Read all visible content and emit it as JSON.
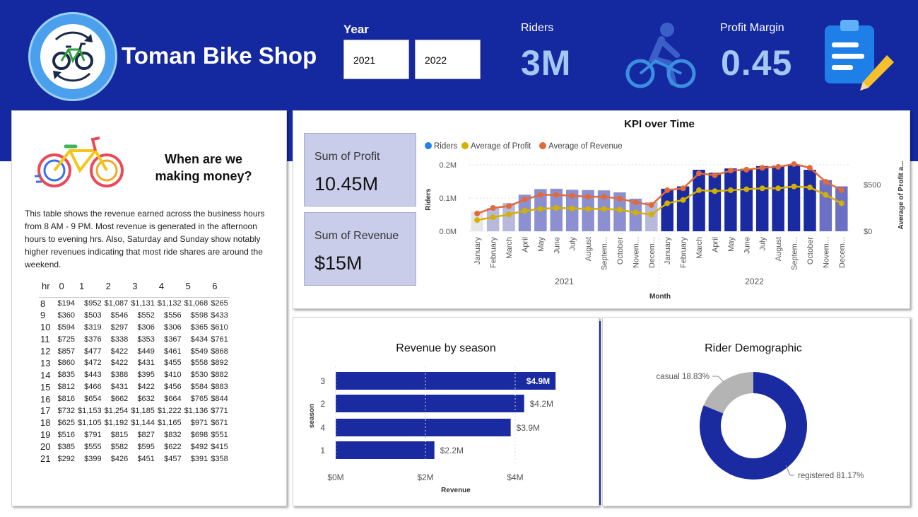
{
  "header": {
    "title": "Toman Bike Shop",
    "year_label": "Year",
    "years": [
      "2021",
      "2022"
    ],
    "riders_label": "Riders",
    "riders_value": "3M",
    "margin_label": "Profit Margin",
    "margin_value": "0.45",
    "icons": [
      "bike-cycle-logo-icon",
      "cyclist-icon",
      "clipboard-pencil-icon"
    ]
  },
  "money_panel": {
    "question": "When are we making money?",
    "description": "This table shows the revenue earned across the business hours from 8 AM - 9 PM. Most revenue is generated in the afternoon hours to evening hrs.  Also, Saturday and Sunday show notably higher revenues indicating that most ride shares are around the weekend.",
    "table": {
      "corner": "hr",
      "columns": [
        "0",
        "1",
        "2",
        "3",
        "4",
        "5",
        "6"
      ],
      "rows": [
        {
          "hr": "8",
          "cells": [
            "$194",
            "$952",
            "$1,087",
            "$1,131",
            "$1,132",
            "$1,068",
            "$265"
          ]
        },
        {
          "hr": "9",
          "cells": [
            "$360",
            "$503",
            "$546",
            "$552",
            "$556",
            "$598",
            "$433"
          ]
        },
        {
          "hr": "10",
          "cells": [
            "$594",
            "$319",
            "$297",
            "$306",
            "$306",
            "$365",
            "$610"
          ]
        },
        {
          "hr": "11",
          "cells": [
            "$725",
            "$376",
            "$338",
            "$353",
            "$367",
            "$434",
            "$761"
          ]
        },
        {
          "hr": "12",
          "cells": [
            "$857",
            "$477",
            "$422",
            "$449",
            "$461",
            "$549",
            "$868"
          ]
        },
        {
          "hr": "13",
          "cells": [
            "$860",
            "$472",
            "$422",
            "$431",
            "$455",
            "$558",
            "$892"
          ]
        },
        {
          "hr": "14",
          "cells": [
            "$835",
            "$443",
            "$388",
            "$395",
            "$410",
            "$530",
            "$882"
          ]
        },
        {
          "hr": "15",
          "cells": [
            "$812",
            "$466",
            "$431",
            "$422",
            "$456",
            "$584",
            "$883"
          ]
        },
        {
          "hr": "16",
          "cells": [
            "$816",
            "$654",
            "$662",
            "$632",
            "$664",
            "$765",
            "$844"
          ]
        },
        {
          "hr": "17",
          "cells": [
            "$732",
            "$1,153",
            "$1,254",
            "$1,185",
            "$1,222",
            "$1,136",
            "$771"
          ]
        },
        {
          "hr": "18",
          "cells": [
            "$625",
            "$1,105",
            "$1,192",
            "$1,144",
            "$1,165",
            "$971",
            "$671"
          ]
        },
        {
          "hr": "19",
          "cells": [
            "$516",
            "$791",
            "$815",
            "$827",
            "$832",
            "$698",
            "$551"
          ]
        },
        {
          "hr": "20",
          "cells": [
            "$385",
            "$555",
            "$582",
            "$595",
            "$622",
            "$492",
            "$415"
          ]
        },
        {
          "hr": "21",
          "cells": [
            "$292",
            "$399",
            "$426",
            "$451",
            "$457",
            "$391",
            "$358"
          ]
        }
      ]
    }
  },
  "cards": [
    {
      "label": "Sum of Profit",
      "value": "10.45M"
    },
    {
      "label": "Sum of Revenue",
      "value": "$15M"
    }
  ],
  "colors": {
    "banner": "#1428a0",
    "riders": "#2480f0",
    "profit": "#d4b000",
    "revenue": "#e06a3a",
    "bar_2022": "#1a2aa0",
    "bar_light": "#8c90d0",
    "bar_faint": "#e6e6e6",
    "casual": "#b4b4b4",
    "registered": "#1a2aa0"
  },
  "chart_data": [
    {
      "type": "bar",
      "title": "KPI over Time",
      "xlabel": "Month",
      "ylabel": "Riders",
      "y2label": "Average of Profit a...",
      "legend": [
        "Riders",
        "Average of Profit",
        "Average of Revenue"
      ],
      "legend_position": "top-left",
      "ylim": [
        0,
        220000
      ],
      "y2lim": [
        0,
        800
      ],
      "yticks": [
        "0.0M",
        "0.1M",
        "0.2M"
      ],
      "y2ticks": [
        "$0",
        "$500"
      ],
      "groups": [
        "2021",
        "2022"
      ],
      "categories": [
        "January",
        "February",
        "March",
        "April",
        "May",
        "June",
        "July",
        "August",
        "Septem...",
        "October",
        "Novem...",
        "Decem...",
        "January",
        "February",
        "March",
        "April",
        "May",
        "June",
        "July",
        "August",
        "Septem...",
        "October",
        "Novem...",
        "Decem..."
      ],
      "series": [
        {
          "name": "Riders",
          "values": [
            60000,
            70000,
            85000,
            110000,
            127000,
            128000,
            125000,
            124000,
            123000,
            117000,
            98000,
            88000,
            128000,
            135000,
            185000,
            176000,
            189000,
            188000,
            196000,
            197000,
            201000,
            185000,
            154000,
            135000
          ]
        },
        {
          "name": "Average of Profit",
          "values": [
            120,
            150,
            180,
            220,
            240,
            250,
            245,
            240,
            240,
            230,
            200,
            180,
            300,
            335,
            440,
            430,
            440,
            450,
            460,
            460,
            480,
            470,
            390,
            300
          ]
        },
        {
          "name": "Average of Revenue",
          "values": [
            190,
            250,
            270,
            340,
            390,
            390,
            380,
            370,
            370,
            350,
            310,
            280,
            440,
            460,
            620,
            600,
            650,
            660,
            680,
            690,
            720,
            680,
            530,
            440
          ]
        }
      ]
    },
    {
      "type": "bar",
      "orientation": "horizontal",
      "title": "Revenue by season",
      "xlabel": "Revenue",
      "ylabel": "season",
      "xlim": [
        0,
        5000000
      ],
      "xticks": [
        "$0M",
        "$2M",
        "$4M"
      ],
      "categories": [
        "3",
        "2",
        "4",
        "1"
      ],
      "values": [
        4900000,
        4200000,
        3900000,
        2200000
      ],
      "labels": [
        "$4.9M",
        "$4.2M",
        "$3.9M",
        "$2.2M"
      ]
    },
    {
      "type": "pie",
      "title": "Rider Demographic",
      "categories": [
        "casual",
        "registered"
      ],
      "values": [
        18.83,
        81.17
      ],
      "labels": [
        "casual 18.83%",
        "registered 81.17%"
      ]
    }
  ]
}
